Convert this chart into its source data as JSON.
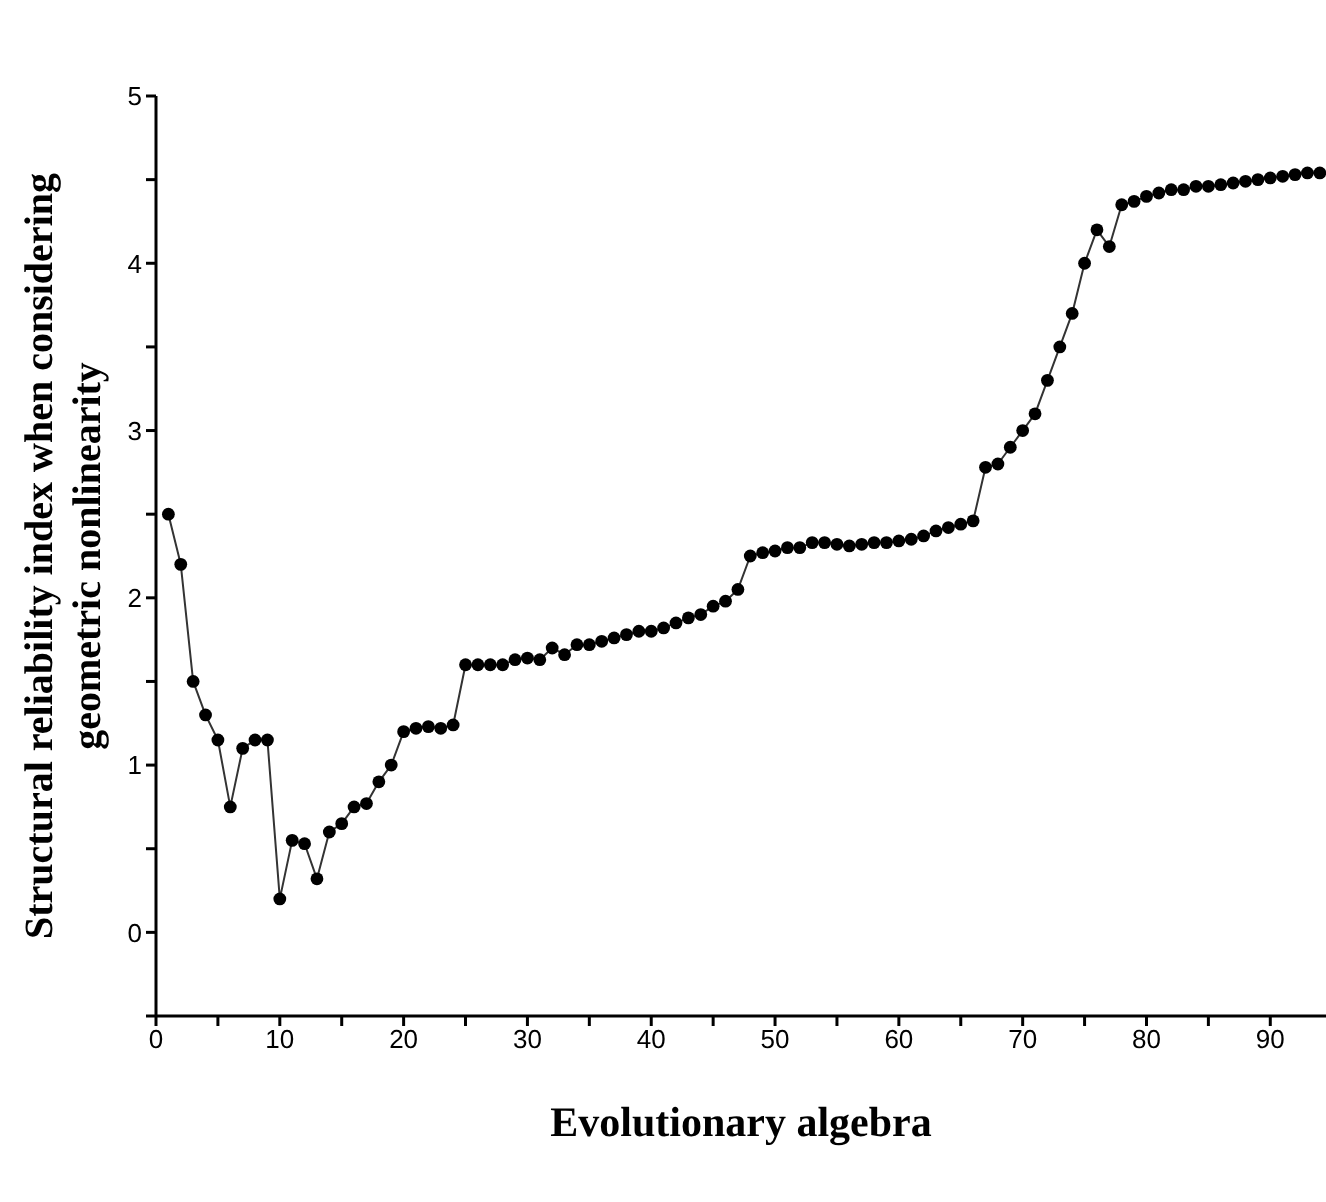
{
  "chart_data": {
    "type": "line",
    "xlabel": "Evolutionary algebra",
    "ylabel": "Structural reliability index when considering geometric nonlinearity",
    "x": [
      1,
      2,
      3,
      4,
      5,
      6,
      7,
      8,
      9,
      10,
      11,
      12,
      13,
      14,
      15,
      16,
      17,
      18,
      19,
      20,
      21,
      22,
      23,
      24,
      25,
      26,
      27,
      28,
      29,
      30,
      31,
      32,
      33,
      34,
      35,
      36,
      37,
      38,
      39,
      40,
      41,
      42,
      43,
      44,
      45,
      46,
      47,
      48,
      49,
      50,
      51,
      52,
      53,
      54,
      55,
      56,
      57,
      58,
      59,
      60,
      61,
      62,
      63,
      64,
      65,
      66,
      67,
      68,
      69,
      70,
      71,
      72,
      73,
      74,
      75,
      76,
      77,
      78,
      79,
      80,
      81,
      82,
      83,
      84,
      85,
      86,
      87,
      88,
      89,
      90,
      91,
      92,
      93,
      94
    ],
    "series": [
      {
        "color": "#000000",
        "values": [
          2.5,
          2.2,
          1.5,
          1.3,
          1.15,
          0.75,
          1.1,
          1.15,
          1.15,
          0.2,
          0.55,
          0.53,
          0.32,
          0.6,
          0.65,
          0.75,
          0.77,
          0.9,
          1.0,
          1.2,
          1.22,
          1.23,
          1.22,
          1.24,
          1.6,
          1.6,
          1.6,
          1.6,
          1.63,
          1.64,
          1.63,
          1.7,
          1.66,
          1.72,
          1.72,
          1.74,
          1.76,
          1.78,
          1.8,
          1.8,
          1.82,
          1.85,
          1.88,
          1.9,
          1.95,
          1.98,
          2.05,
          2.25,
          2.27,
          2.28,
          2.3,
          2.3,
          2.33,
          2.33,
          2.32,
          2.31,
          2.32,
          2.33,
          2.33,
          2.34,
          2.35,
          2.37,
          2.4,
          2.42,
          2.44,
          2.46,
          2.78,
          2.8,
          2.9,
          3.0,
          3.1,
          3.3,
          3.5,
          3.7,
          4.0,
          4.2,
          4.1,
          4.35,
          4.37,
          4.4,
          4.42,
          4.44,
          4.44,
          4.46,
          4.46,
          4.47,
          4.48,
          4.49,
          4.5,
          4.51,
          4.52,
          4.53,
          4.54,
          4.54
        ]
      }
    ],
    "xlim": [
      0,
      94.5
    ],
    "xticks": [
      0,
      {
        "value": 5,
        "label": null
      },
      10,
      {
        "value": 15,
        "label": null
      },
      20,
      {
        "value": 25,
        "label": null
      },
      30,
      {
        "value": 35,
        "label": null
      },
      40,
      {
        "value": 45,
        "label": null
      },
      50,
      {
        "value": 55,
        "label": null
      },
      60,
      {
        "value": 65,
        "label": null
      },
      70,
      {
        "value": 75,
        "label": null
      },
      80,
      {
        "value": 85,
        "label": null
      },
      90
    ],
    "ylim": [
      -0.5,
      5
    ],
    "yticks": [
      {
        "value": -0.5,
        "label": null
      },
      0,
      {
        "value": 0.5,
        "label": null
      },
      1,
      {
        "value": 1.5,
        "label": null
      },
      2,
      {
        "value": 2.5,
        "label": null
      },
      3,
      {
        "value": 3.5,
        "label": null
      },
      4,
      {
        "value": 4.5,
        "label": null
      },
      5
    ],
    "grid": false,
    "legend": false,
    "marker": "circle",
    "line_style": "solid"
  }
}
